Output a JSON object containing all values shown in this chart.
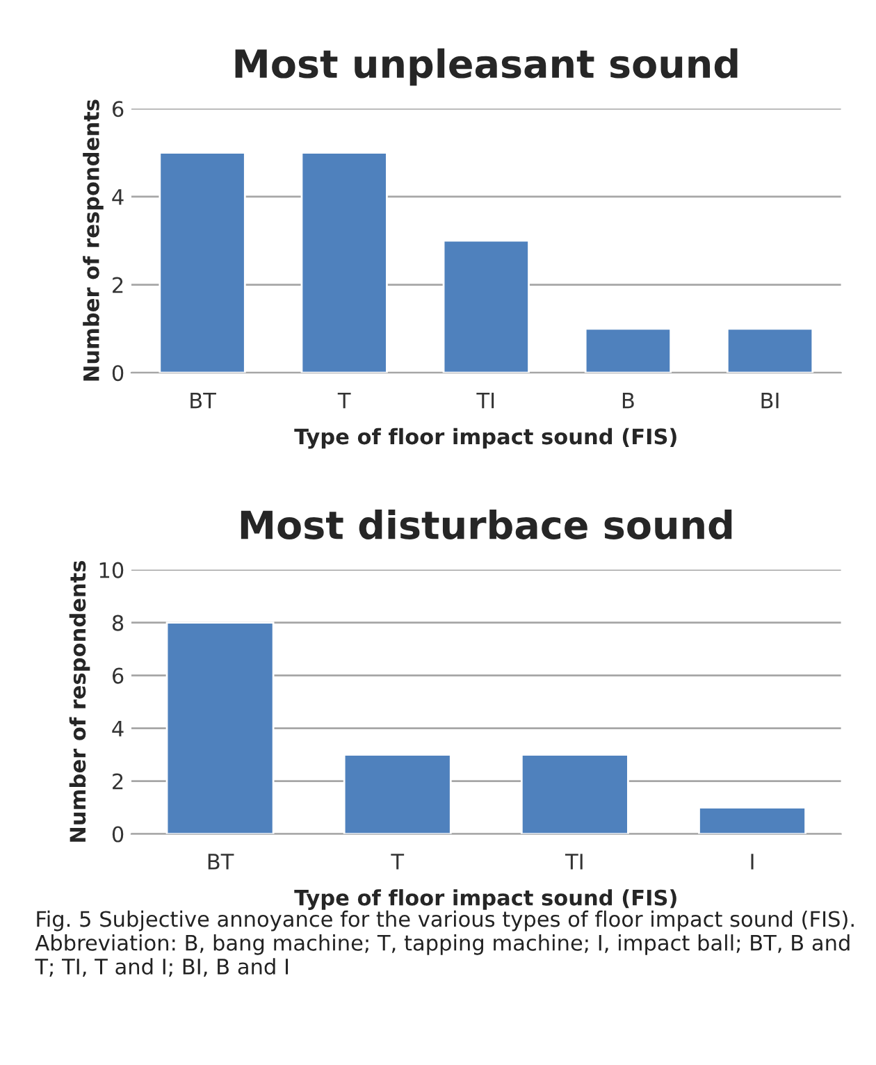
{
  "chart_data": [
    {
      "type": "bar",
      "title": "Most unpleasant sound",
      "xlabel": "Type of floor impact sound (FIS)",
      "ylabel": "Number of respondents",
      "categories": [
        "BT",
        "T",
        "TI",
        "B",
        "BI"
      ],
      "values": [
        5,
        5,
        3,
        1,
        1
      ],
      "color": "#4f81bd",
      "ylim": [
        0,
        6
      ],
      "yticks": [
        0,
        2,
        4,
        6
      ],
      "grid": "y"
    },
    {
      "type": "bar",
      "title": "Most disturbace sound",
      "xlabel": "Type of floor impact sound (FIS)",
      "ylabel": "Number of respondents",
      "categories": [
        "BT",
        "T",
        "TI",
        "I"
      ],
      "values": [
        8,
        3,
        3,
        1
      ],
      "color": "#4f81bd",
      "ylim": [
        0,
        10
      ],
      "yticks": [
        0,
        2,
        4,
        6,
        8,
        10
      ],
      "grid": "y",
      "annotations": [
        "Fig. 5 Subjective annoyance for the various types of floor impact sound (FIS). Abbreviation: B, bang machine; T, tapping machine; I, impact ball; BT, B and T; TI, T and I; BI, B and I"
      ]
    }
  ]
}
